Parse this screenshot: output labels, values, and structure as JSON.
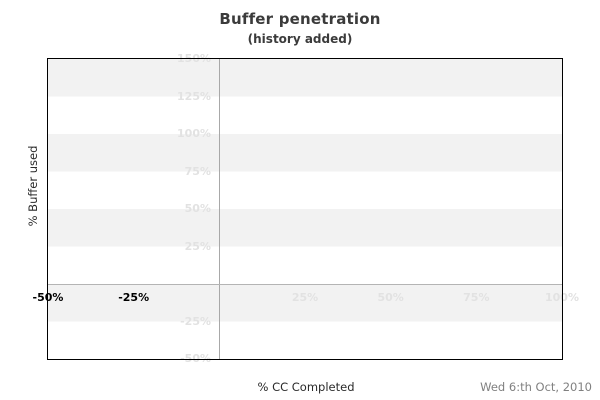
{
  "header": {
    "title": "Buffer penetration",
    "subtitle": "(history added)"
  },
  "footer": {
    "x_axis_title": "% CC Completed",
    "date": "Wed 6:th Oct, 2010"
  },
  "chart_data": {
    "type": "scatter",
    "title": "Buffer penetration",
    "subtitle": "(history added)",
    "xlabel": "% CC Completed",
    "ylabel": "% Buffer used",
    "xlim": [
      -50,
      100
    ],
    "ylim": [
      -50,
      150
    ],
    "x_ticks": [
      {
        "label": "-50%",
        "value": -50,
        "strong": true
      },
      {
        "label": "-25%",
        "value": -25,
        "strong": true
      },
      {
        "label": "25%",
        "value": 25,
        "strong": false
      },
      {
        "label": "50%",
        "value": 50,
        "strong": false
      },
      {
        "label": "75%",
        "value": 75,
        "strong": false
      },
      {
        "label": "100%",
        "value": 100,
        "strong": false
      }
    ],
    "y_ticks": [
      {
        "label": "150%",
        "value": 150
      },
      {
        "label": "125%",
        "value": 125
      },
      {
        "label": "100%",
        "value": 100
      },
      {
        "label": "75%",
        "value": 75
      },
      {
        "label": "50%",
        "value": 50
      },
      {
        "label": "25%",
        "value": 25
      },
      {
        "label": "-25%",
        "value": -25
      },
      {
        "label": "-50%",
        "value": -50
      }
    ],
    "series": [],
    "annotations": [],
    "layout": {
      "grid": "alternating horizontal bands every 25%, zero lines only",
      "band_color": "#f2f2f2",
      "zero_line_color": "#a8a8a8",
      "faint_tick_color": "#e2e2e2",
      "strong_tick_color": "#000000",
      "border_color": "#000000",
      "legend": "none"
    }
  }
}
